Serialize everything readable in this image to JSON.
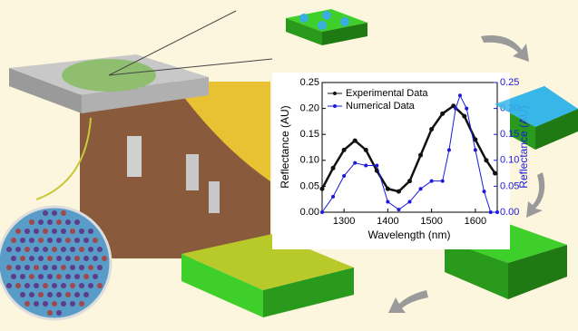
{
  "chart_data": {
    "type": "line",
    "xlabel": "Wavelength (nm)",
    "ylabel": "Reflectance (AU)",
    "y2label": "Reflectance (AU)",
    "xlim": [
      1250,
      1650
    ],
    "xticks": [
      1300,
      1400,
      1500,
      1600
    ],
    "ylim": [
      0,
      0.25
    ],
    "yticks": [
      {
        "value": 0,
        "label": "0.00"
      },
      0.05,
      {
        "value": 0.1,
        "label": "0.10"
      },
      0.15,
      {
        "value": 0.2,
        "label": "0.20"
      },
      0.25
    ],
    "y2lim": [
      0,
      0.25
    ],
    "y2ticks": [
      {
        "value": 0,
        "label": "0.00"
      },
      0.05,
      {
        "value": 0.1,
        "label": "0.10"
      },
      0.15,
      {
        "value": 0.2,
        "label": "0.20"
      },
      0.25
    ],
    "legend": "upper left",
    "series": [
      {
        "name": "Experimental Data",
        "color": "#111111",
        "x": [
          1250,
          1275,
          1300,
          1325,
          1350,
          1375,
          1400,
          1425,
          1450,
          1475,
          1500,
          1525,
          1550,
          1575,
          1600,
          1625,
          1645
        ],
        "values": [
          0.045,
          0.085,
          0.12,
          0.138,
          0.12,
          0.08,
          0.045,
          0.04,
          0.06,
          0.11,
          0.16,
          0.19,
          0.205,
          0.185,
          0.14,
          0.1,
          0.075
        ]
      },
      {
        "name": "Numerical Data",
        "color": "#1a1adc",
        "axis": "y2",
        "x": [
          1250,
          1275,
          1300,
          1325,
          1350,
          1375,
          1400,
          1425,
          1450,
          1475,
          1500,
          1525,
          1540,
          1555,
          1565,
          1580,
          1600,
          1620,
          1635,
          1650
        ],
        "values": [
          0.0,
          0.03,
          0.07,
          0.095,
          0.09,
          0.09,
          0.02,
          0.005,
          0.02,
          0.045,
          0.06,
          0.06,
          0.12,
          0.2,
          0.225,
          0.2,
          0.12,
          0.04,
          0.0,
          0.0
        ]
      }
    ]
  }
}
